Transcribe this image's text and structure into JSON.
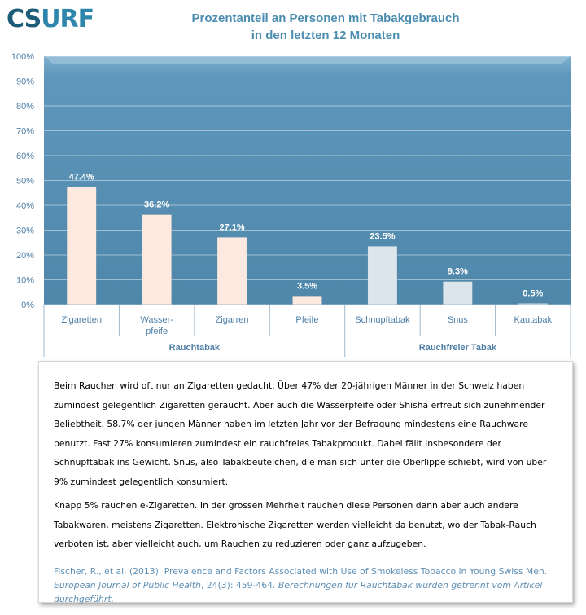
{
  "logo": {
    "part1": "C",
    "part2": "S",
    "part3": "URF"
  },
  "chart_data": {
    "type": "bar",
    "title_line1": "Prozentanteil an Personen mit Tabakgebrauch",
    "title_line2": "in den letzten 12 Monaten",
    "categories": [
      "Zigaretten",
      "Wasser-\npfeife",
      "Zigarren",
      "Pfeife",
      "Schnupftabak",
      "Snus",
      "Kautabak"
    ],
    "values": [
      47.4,
      36.2,
      27.1,
      3.5,
      23.5,
      9.3,
      0.5
    ],
    "value_labels": [
      "47.4%",
      "36.2%",
      "27.1%",
      "3.5%",
      "23.5%",
      "9.3%",
      "0.5%"
    ],
    "groups": [
      {
        "label": "Rauchtabak",
        "start": 0,
        "end": 3,
        "bar_color": "#fde9df"
      },
      {
        "label": "Rauchfreier Tabak",
        "start": 4,
        "end": 6,
        "bar_color": "#dbe5ec"
      }
    ],
    "ylim": [
      0,
      100
    ],
    "yticks": [
      0,
      10,
      20,
      30,
      40,
      50,
      60,
      70,
      80,
      90,
      100
    ],
    "ytick_labels": [
      "0%",
      "10%",
      "20%",
      "30%",
      "40%",
      "50%",
      "60%",
      "70%",
      "80%",
      "90%",
      "100%"
    ],
    "grid": true,
    "plot_bg": "#5b93b7",
    "axis_text_color": "#4f7fa6"
  },
  "text": {
    "paragraph1": "Beim Rauchen wird oft nur an Zigaretten gedacht. Über 47% der 20-jährigen Männer in der Schweiz haben zumindest gelegentlich Zigaretten geraucht. Aber auch die Wasserpfeife oder Shisha erfreut sich zunehmender Beliebtheit. 58.7% der jungen Männer haben im letzten Jahr vor der Befragung mindestens eine Rauchware benutzt. Fast 27% konsumieren zumindest ein rauchfreies Tabakprodukt. Dabei fällt insbesondere der Schnupftabak ins Gewicht. Snus, also Tabakbeutelchen, die man sich unter die Oberlippe schiebt, wird von über 9% zumindest gelegentlich konsumiert.",
    "paragraph2": "Knapp 5% rauchen e-Zigaretten. In der grossen Mehrheit rauchen diese Personen dann aber auch andere Tabakwaren, meistens Zigaretten. Elektronische Zigaretten werden vielleicht da benutzt, wo der Tabak-Rauch verboten ist, aber vielleicht auch, um Rauchen zu reduzieren oder ganz aufzugeben.",
    "source_authors": "Fischer, R., et al. (2013). Prevalence and Factors Associated with Use of Smokeless Tobacco in Young Swiss Men.",
    "source_journal": "European Journal of Public Health",
    "source_volume": ", 24(3): 459-464.",
    "source_note": "Berechnungen für Rauchtabak wurden getrennt vom Artikel durchgeführt."
  }
}
